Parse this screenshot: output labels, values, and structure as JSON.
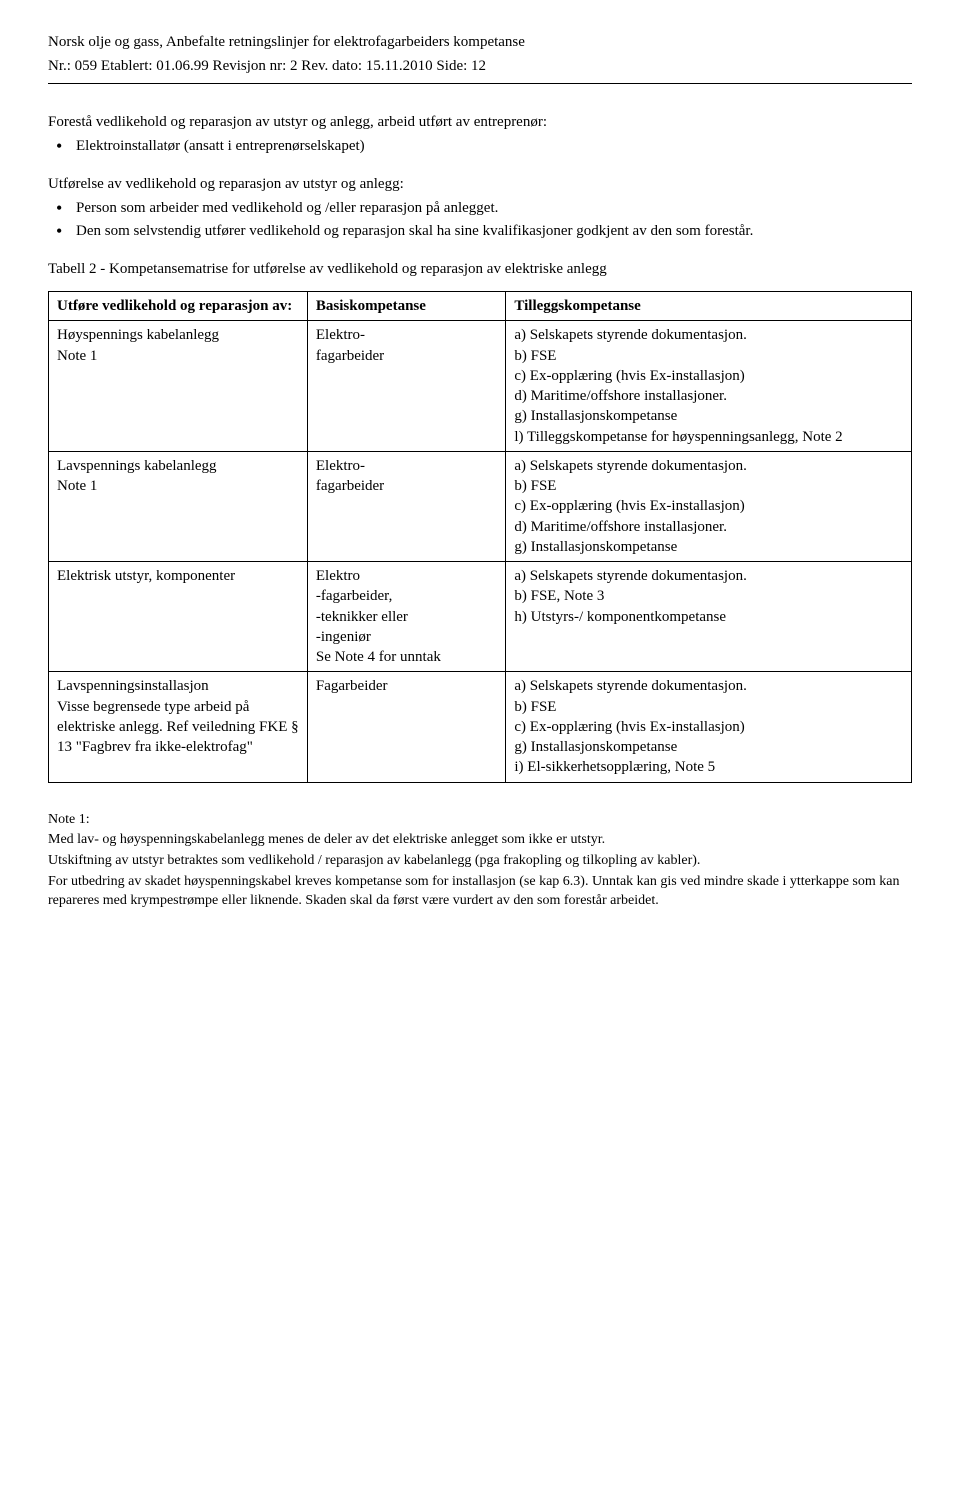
{
  "header": {
    "line1": "Norsk olje og gass, Anbefalte retningslinjer for elektrofagarbeiders kompetanse",
    "line2": "Nr.: 059   Etablert: 01.06.99            Revisjon nr: 2         Rev. dato: 15.11.2010   Side: 12"
  },
  "intro": {
    "p1": "Forestå vedlikehold og reparasjon av utstyr og anlegg, arbeid utført av entreprenør:",
    "b1": "Elektroinstallatør (ansatt i entreprenørselskapet)",
    "p2": "Utførelse av vedlikehold og reparasjon av utstyr og anlegg:",
    "b2": "Person som arbeider med vedlikehold og /eller reparasjon på anlegget.",
    "b3": "Den som selvstendig utfører vedlikehold og reparasjon skal ha sine kvalifikasjoner godkjent av den som forestår."
  },
  "caption": "Tabell 2 - Kompetansematrise for utførelse av vedlikehold og reparasjon av elektriske anlegg",
  "th": {
    "c1": "Utføre vedlikehold og reparasjon av:",
    "c2": "Basiskompetanse",
    "c3": "Tilleggskompetanse"
  },
  "rows": [
    {
      "c1": "Høyspennings kabelanlegg\nNote 1",
      "c2": "Elektro-\nfagarbeider",
      "c3": "a) Selskapets styrende dokumentasjon.\nb) FSE\nc) Ex-opplæring (hvis Ex-installasjon)\nd) Maritime/offshore installasjoner.\ng) Installasjonskompetanse\nl) Tilleggskompetanse for høyspenningsanlegg, Note 2"
    },
    {
      "c1": "Lavspennings kabelanlegg\nNote 1",
      "c2": "Elektro-\nfagarbeider",
      "c3": "a) Selskapets styrende dokumentasjon.\nb) FSE\nc) Ex-opplæring (hvis Ex-installasjon)\nd) Maritime/offshore installasjoner.\ng) Installasjonskompetanse"
    },
    {
      "c1": "Elektrisk utstyr, komponenter",
      "c2": "Elektro\n-fagarbeider,\n-teknikker eller\n-ingeniør\nSe Note 4 for unntak",
      "c3": "a) Selskapets styrende dokumentasjon.\nb) FSE, Note 3\nh) Utstyrs-/ komponentkompetanse"
    },
    {
      "c1": "Lavspenningsinstallasjon\nVisse begrensede type arbeid på elektriske anlegg. Ref veiledning FKE § 13 \"Fagbrev fra ikke-elektrofag\"",
      "c2": "Fagarbeider",
      "c3": "a) Selskapets styrende dokumentasjon.\nb) FSE\nc) Ex-opplæring (hvis Ex-installasjon)\ng) Installasjonskompetanse\ni) El-sikkerhetsopplæring, Note 5"
    }
  ],
  "notes": {
    "title": "Note 1:",
    "l1": "Med lav- og høyspenningskabelanlegg menes de deler av det elektriske anlegget som ikke er utstyr.",
    "l2": "Utskiftning av utstyr betraktes som vedlikehold / reparasjon av kabelanlegg (pga frakopling og tilkopling av kabler).",
    "l3": "For utbedring av skadet høyspenningskabel kreves kompetanse som for installasjon (se kap 6.3). Unntak kan gis ved mindre skade i ytterkappe som kan repareres med krympestrømpe eller liknende. Skaden skal da først være vurdert av den som forestår arbeidet."
  }
}
